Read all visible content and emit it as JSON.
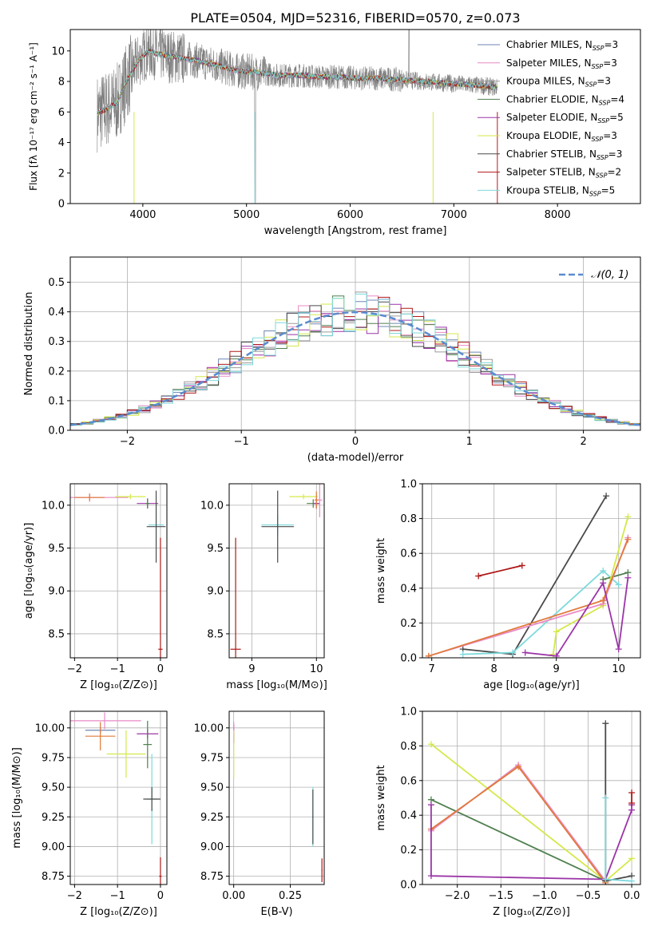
{
  "figure_title": "PLATE=0504, MJD=52316, FIBERID=0570, z=0.073",
  "colors": {
    "spectrum": "#7f7f7f",
    "chabrier_miles": "#6f86b5",
    "salpeter_miles": "#e98ac5",
    "kroupa_miles": "#9a9a9a",
    "chabrier_elodie": "#4f7f4f",
    "salpeter_elodie": "#9b35a8",
    "kroupa_elodie": "#d4e84a",
    "chabrier_stelib": "#4a4a4a",
    "salpeter_stelib": "#b01818",
    "kroupa_stelib": "#7dd9dc",
    "orange": "#e07a3a",
    "normal_curve": "#5b8bd0",
    "grid": "#b0b0b0"
  },
  "chart_data": [
    {
      "id": "spectrum",
      "type": "line",
      "title": "PLATE=0504, MJD=52316, FIBERID=0570, z=0.073",
      "xlabel": "wavelength [Angstrom, rest frame]",
      "ylabel": "Flux [fλ 10⁻¹⁷ erg cm⁻² s⁻¹ A⁻¹]",
      "xlim": [
        3300,
        8800
      ],
      "ylim": [
        0,
        11.4
      ],
      "xticks": [
        4000,
        5000,
        6000,
        7000,
        8000
      ],
      "xtick_labels": [
        "4000",
        "5000",
        "6000",
        "7000",
        "8000"
      ],
      "yticks": [
        0,
        2,
        4,
        6,
        8,
        10
      ],
      "ytick_labels": [
        "0",
        "2",
        "4",
        "6",
        "8",
        "10"
      ],
      "grid": false,
      "legend_position": "top-right",
      "legend": [
        "Chabrier MILES, N_SSP=3",
        "Salpeter MILES, N_SSP=3",
        "Kroupa MILES, N_SSP=3",
        "Chabrier ELODIE, N_SSP=4",
        "Salpeter ELODIE, N_SSP=5",
        "Kroupa ELODIE, N_SSP=3",
        "Chabrier STELIB, N_SSP=3",
        "Salpeter STELIB, N_SSP=2",
        "Kroupa STELIB, N_SSP=5"
      ],
      "continuum": {
        "x": [
          3550,
          3650,
          3750,
          3850,
          3950,
          4050,
          4150,
          4300,
          4500,
          4700,
          4900,
          5100,
          5300,
          5500,
          5700,
          5900,
          6100,
          6300,
          6500,
          6700,
          6900,
          7100,
          7300,
          7420
        ],
        "y": [
          5.9,
          6.2,
          6.6,
          8.1,
          9.3,
          10.0,
          9.8,
          9.6,
          9.4,
          9.1,
          8.7,
          8.6,
          8.4,
          8.4,
          8.3,
          8.3,
          8.2,
          8.2,
          8.1,
          8.0,
          7.9,
          7.8,
          7.7,
          7.6
        ]
      }
    },
    {
      "id": "residuals",
      "type": "histogram",
      "xlabel": "(data-model)/error",
      "ylabel": "Normed distribution",
      "xlim": [
        -2.5,
        2.5
      ],
      "ylim": [
        0,
        0.585
      ],
      "xticks": [
        -2,
        -1,
        0,
        1,
        2
      ],
      "xtick_labels": [
        "−2",
        "−1",
        "0",
        "1",
        "2"
      ],
      "yticks": [
        0,
        0.1,
        0.2,
        0.3,
        0.4,
        0.5
      ],
      "ytick_labels": [
        "0.0",
        "0.1",
        "0.2",
        "0.3",
        "0.4",
        "0.5"
      ],
      "grid": true,
      "legend_position": "top-right",
      "legend": [
        "𝒩(0, 1)"
      ],
      "bin_width": 0.1
    },
    {
      "id": "age-vs-Z",
      "type": "scatter",
      "xlabel": "Z [log₁₀(Z/Z⊙)]",
      "ylabel": "age  [log₁₀(age/yr)]",
      "xlim": [
        -2.1,
        0.15
      ],
      "ylim": [
        8.22,
        10.25
      ],
      "xticks": [
        -2,
        -1,
        0
      ],
      "xtick_labels": [
        "−2",
        "−1",
        "0"
      ],
      "yticks": [
        8.5,
        9.0,
        9.5,
        10.0
      ],
      "ytick_labels": [
        "8.5",
        "9.0",
        "9.5",
        "10.0"
      ],
      "grid": true,
      "points": [
        {
          "series": "salpeter_miles",
          "x": -1.65,
          "y": 10.09,
          "xerr": 0.9,
          "yerr": 0.05
        },
        {
          "series": "orange",
          "x": -1.65,
          "y": 10.09,
          "xerr": 0.35,
          "yerr": 0.04
        },
        {
          "series": "kroupa_elodie",
          "x": -0.7,
          "y": 10.1,
          "xerr": 0.35,
          "yerr": 0.03
        },
        {
          "series": "salpeter_elodie",
          "x": -0.3,
          "y": 10.02,
          "xerr": 0.25,
          "yerr": 0.06
        },
        {
          "series": "chabrier_elodie",
          "x": -0.3,
          "y": 10.02,
          "xerr": 0.05,
          "yerr": 0.05
        },
        {
          "series": "kroupa_stelib",
          "x": -0.1,
          "y": 9.77,
          "xerr": 0.18,
          "yerr": 0.25
        },
        {
          "series": "chabrier_stelib",
          "x": -0.1,
          "y": 9.75,
          "xerr": 0.22,
          "yerr": 0.42
        },
        {
          "series": "salpeter_stelib",
          "x": 0.0,
          "y": 8.32,
          "xerr": 0.05,
          "yerr": 1.3
        }
      ]
    },
    {
      "id": "age-vs-mass",
      "type": "scatter",
      "xlabel": "mass [log₁₀(M/M⊙)]",
      "ylabel": "",
      "xlim": [
        8.65,
        10.12
      ],
      "ylim": [
        8.22,
        10.25
      ],
      "xticks": [
        9,
        10
      ],
      "xtick_labels": [
        "9",
        "10"
      ],
      "yticks": [
        8.5,
        9.0,
        9.5,
        10.0
      ],
      "ytick_labels": [
        "8.5",
        "9.0",
        "9.5",
        "10.0"
      ],
      "grid": true,
      "points": [
        {
          "series": "salpeter_stelib",
          "x": 8.75,
          "y": 8.32,
          "xerr": 0.08,
          "yerr": 1.3
        },
        {
          "series": "kroupa_stelib",
          "x": 9.4,
          "y": 9.77,
          "xerr": 0.25,
          "yerr": 0.12
        },
        {
          "series": "chabrier_stelib",
          "x": 9.4,
          "y": 9.75,
          "xerr": 0.25,
          "yerr": 0.42
        },
        {
          "series": "kroupa_elodie",
          "x": 9.8,
          "y": 10.1,
          "xerr": 0.22,
          "yerr": 0.03
        },
        {
          "series": "chabrier_elodie",
          "x": 9.95,
          "y": 10.02,
          "xerr": 0.1,
          "yerr": 0.05
        },
        {
          "series": "salpeter_elodie",
          "x": 10.0,
          "y": 10.02,
          "xerr": 0.05,
          "yerr": 0.06
        },
        {
          "series": "salpeter_miles",
          "x": 10.05,
          "y": 10.06,
          "xerr": 0.04,
          "yerr": 0.2
        },
        {
          "series": "orange",
          "x": 10.0,
          "y": 10.06,
          "xerr": 0.03,
          "yerr": 0.1
        }
      ]
    },
    {
      "id": "mass-weight-vs-age",
      "type": "line",
      "xlabel": "age  [log₁₀(age/yr)]",
      "ylabel": "mass weight",
      "xlim": [
        6.85,
        10.35
      ],
      "ylim": [
        0,
        1.0
      ],
      "xticks": [
        7,
        8,
        9,
        10
      ],
      "xtick_labels": [
        "7",
        "8",
        "9",
        "10"
      ],
      "yticks": [
        0,
        0.2,
        0.4,
        0.6,
        0.8,
        1.0
      ],
      "ytick_labels": [
        "0.0",
        "0.2",
        "0.4",
        "0.6",
        "0.8",
        "1.0"
      ],
      "grid": true,
      "series": [
        {
          "series": "chabrier_stelib",
          "x": [
            7.5,
            8.3,
            9.8
          ],
          "y": [
            0.05,
            0.02,
            0.93
          ]
        },
        {
          "series": "salpeter_stelib",
          "x": [
            7.75,
            8.45
          ],
          "y": [
            0.47,
            0.53
          ]
        },
        {
          "series": "kroupa_stelib",
          "x": [
            7.5,
            8.3,
            9.75,
            10.0
          ],
          "y": [
            0.02,
            0.03,
            0.5,
            0.42
          ]
        },
        {
          "series": "chabrier_elodie",
          "x": [
            9.75,
            10.15
          ],
          "y": [
            0.45,
            0.49
          ]
        },
        {
          "series": "kroupa_elodie",
          "x": [
            8.95,
            9.0,
            9.75,
            10.15
          ],
          "y": [
            0.02,
            0.15,
            0.3,
            0.81
          ]
        },
        {
          "series": "salpeter_miles",
          "x": [
            6.95,
            9.75,
            10.15
          ],
          "y": [
            0.01,
            0.31,
            0.69
          ]
        },
        {
          "series": "orange",
          "x": [
            6.95,
            9.75,
            10.15
          ],
          "y": [
            0.01,
            0.33,
            0.68
          ]
        },
        {
          "series": "salpeter_elodie",
          "x": [
            8.5,
            9.0,
            9.75,
            10.0,
            10.15
          ],
          "y": [
            0.03,
            0.01,
            0.43,
            0.05,
            0.46
          ]
        }
      ]
    },
    {
      "id": "mass-vs-Z",
      "type": "scatter",
      "xlabel": "Z [log₁₀(Z/Z⊙)]",
      "ylabel": "mass [log₁₀(M/M⊙)]",
      "xlim": [
        -2.1,
        0.15
      ],
      "ylim": [
        8.68,
        10.14
      ],
      "xticks": [
        -2,
        -1,
        0
      ],
      "xtick_labels": [
        "−2",
        "−1",
        "0"
      ],
      "yticks": [
        8.75,
        9.0,
        9.25,
        9.5,
        9.75,
        10.0
      ],
      "ytick_labels": [
        "8.75",
        "9.00",
        "9.25",
        "9.50",
        "9.75",
        "10.00"
      ],
      "grid": true,
      "points": [
        {
          "series": "salpeter_miles",
          "x": -1.3,
          "y": 10.06,
          "xerr": 0.85,
          "yerr": 0.07
        },
        {
          "series": "chabrier_miles",
          "x": -1.4,
          "y": 9.98,
          "xerr": 0.35,
          "yerr": 0.03
        },
        {
          "series": "orange",
          "x": -1.4,
          "y": 9.93,
          "xerr": 0.35,
          "yerr": 0.12
        },
        {
          "series": "kroupa_elodie",
          "x": -0.8,
          "y": 9.78,
          "xerr": 0.45,
          "yerr": 0.2
        },
        {
          "series": "salpeter_elodie",
          "x": -0.3,
          "y": 9.95,
          "xerr": 0.25,
          "yerr": 0.04
        },
        {
          "series": "chabrier_elodie",
          "x": -0.3,
          "y": 9.86,
          "xerr": 0.1,
          "yerr": 0.2
        },
        {
          "series": "kroupa_stelib",
          "x": -0.2,
          "y": 9.4,
          "xerr": 0.12,
          "yerr": 0.38
        },
        {
          "series": "chabrier_stelib",
          "x": -0.2,
          "y": 9.4,
          "xerr": 0.2,
          "yerr": 0.1
        },
        {
          "series": "salpeter_stelib",
          "x": 0.0,
          "y": 8.75,
          "xerr": 0.03,
          "yerr": 0.16
        }
      ]
    },
    {
      "id": "mass-vs-ebv",
      "type": "scatter",
      "xlabel": "E(B-V)",
      "ylabel": "",
      "xlim": [
        -0.02,
        0.4
      ],
      "ylim": [
        8.68,
        10.14
      ],
      "xticks": [
        0.0,
        0.25
      ],
      "xtick_labels": [
        "0.00",
        "0.25"
      ],
      "yticks": [
        8.75,
        9.0,
        9.25,
        9.5,
        9.75,
        10.0
      ],
      "ytick_labels": [
        "8.75",
        "9.00",
        "9.25",
        "9.50",
        "9.75",
        "10.00"
      ],
      "grid": true,
      "points": [
        {
          "series": "salpeter_elodie",
          "x": 0.0,
          "y": 9.95,
          "xerr": 0.002,
          "yerr": 0.08
        },
        {
          "series": "salpeter_miles",
          "x": 0.0,
          "y": 10.0,
          "xerr": 0.002,
          "yerr": 0.05
        },
        {
          "series": "kroupa_elodie",
          "x": 0.0,
          "y": 9.78,
          "xerr": 0.002,
          "yerr": 0.2
        },
        {
          "series": "kroupa_stelib",
          "x": 0.35,
          "y": 9.25,
          "xerr": 0.002,
          "yerr": 0.25
        },
        {
          "series": "chabrier_stelib",
          "x": 0.35,
          "y": 9.25,
          "xerr": 0.002,
          "yerr": 0.23
        },
        {
          "series": "salpeter_stelib",
          "x": 0.39,
          "y": 8.8,
          "xerr": 0.002,
          "yerr": 0.1
        }
      ]
    },
    {
      "id": "mass-weight-vs-Z",
      "type": "line",
      "xlabel": "Z [log₁₀(Z/Z⊙)]",
      "ylabel": "mass weight",
      "xlim": [
        -2.4,
        0.1
      ],
      "ylim": [
        0,
        1.0
      ],
      "xticks": [
        -2.0,
        -1.5,
        -1.0,
        -0.5,
        0.0
      ],
      "xtick_labels": [
        "−2.0",
        "−1.5",
        "−1.0",
        "−0.5",
        "0.0"
      ],
      "yticks": [
        0,
        0.2,
        0.4,
        0.6,
        0.8,
        1.0
      ],
      "ytick_labels": [
        "0.0",
        "0.2",
        "0.4",
        "0.6",
        "0.8",
        "1.0"
      ],
      "grid": true,
      "series": [
        {
          "series": "kroupa_elodie",
          "x": [
            -2.3,
            -0.3,
            0.0
          ],
          "y": [
            0.81,
            0.02,
            0.15
          ]
        },
        {
          "series": "chabrier_elodie",
          "x": [
            -2.3,
            -0.3
          ],
          "y": [
            0.49,
            0.02
          ]
        },
        {
          "series": "salpeter_miles",
          "x": [
            -2.3,
            -1.3,
            -0.3
          ],
          "y": [
            0.31,
            0.69,
            0.02
          ]
        },
        {
          "series": "orange",
          "x": [
            -2.3,
            -1.3,
            -0.3
          ],
          "y": [
            0.32,
            0.68,
            0.01
          ]
        },
        {
          "series": "salpeter_elodie",
          "x": [
            -2.3,
            -2.3,
            -0.3,
            0.0,
            0.0
          ],
          "y": [
            0.46,
            0.05,
            0.03,
            0.43,
            0.46
          ]
        },
        {
          "series": "chabrier_stelib",
          "x": [
            -0.3,
            -0.3,
            0.0
          ],
          "y": [
            0.93,
            0.02,
            0.05
          ]
        },
        {
          "series": "kroupa_stelib",
          "x": [
            -0.3,
            -0.3,
            0.0
          ],
          "y": [
            0.5,
            0.03,
            0.02
          ]
        },
        {
          "series": "salpeter_stelib",
          "x": [
            0.0,
            0.0
          ],
          "y": [
            0.47,
            0.53
          ]
        }
      ]
    }
  ]
}
